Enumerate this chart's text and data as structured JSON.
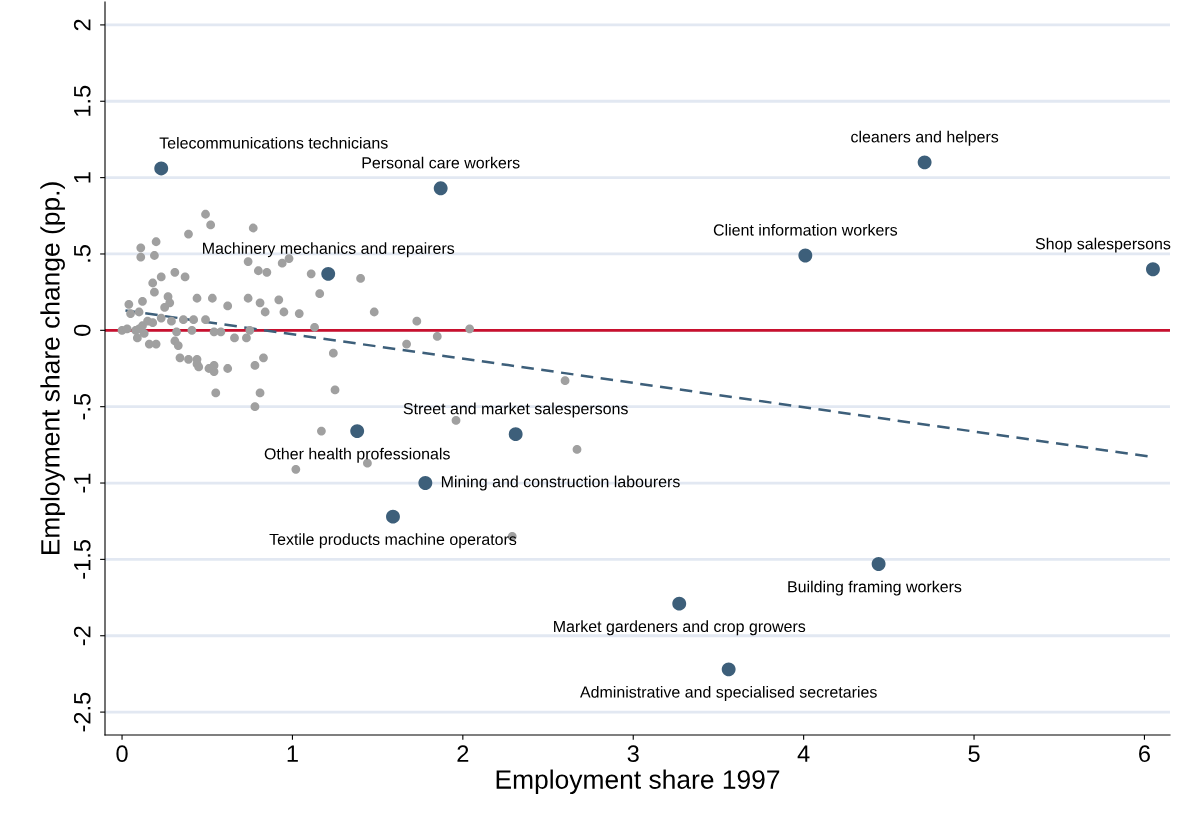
{
  "chart_data": {
    "type": "scatter",
    "xlabel": "Employment share 1997",
    "ylabel": "Employment share change (pp.)",
    "xlim": [
      -0.1,
      6.15
    ],
    "ylim": [
      -2.65,
      2.15
    ],
    "xticks": [
      0,
      1,
      2,
      3,
      4,
      5,
      6
    ],
    "yticks": [
      {
        "value": -2.5,
        "label": "-2.5"
      },
      {
        "value": -2,
        "label": "-2"
      },
      {
        "value": -1.5,
        "label": "-1.5"
      },
      {
        "value": -1,
        "label": "-1"
      },
      {
        "value": -0.5,
        "label": "-.5"
      },
      {
        "value": 0,
        "label": "0"
      },
      {
        "value": 0.5,
        "label": ".5"
      },
      {
        "value": 1,
        "label": "1"
      },
      {
        "value": 1.5,
        "label": "1.5"
      },
      {
        "value": 2,
        "label": "2"
      }
    ],
    "grid": "y",
    "legend": false,
    "series": [
      {
        "marker": "circle",
        "color": "#a0a0a0",
        "x": [
          0.49,
          0.52,
          0.77,
          0.39,
          0.11,
          0.2,
          0.11,
          0.19,
          0.23,
          0.31,
          0.37,
          0.18,
          0.19,
          0.05,
          0.27,
          0.44,
          0.53,
          0.62,
          0.74,
          0.81,
          0.92,
          0.84,
          0.95,
          1.04,
          0.8,
          0.85,
          0.74,
          0.94,
          0.98,
          1.11,
          1.16,
          1.4,
          1.48,
          1.13,
          1.24,
          1.25,
          1.73,
          1.67,
          1.85,
          2.04,
          1.96,
          2.6,
          2.67,
          1.17,
          1.02,
          1.44,
          2.29,
          0.78,
          0.81,
          0.83,
          0.78,
          0.73,
          0.75,
          0.0,
          0.03,
          0.08,
          0.1,
          0.12,
          0.13,
          0.09,
          0.16,
          0.2,
          0.15,
          0.18,
          0.23,
          0.29,
          0.32,
          0.31,
          0.33,
          0.34,
          0.39,
          0.44,
          0.44,
          0.45,
          0.51,
          0.54,
          0.54,
          0.55,
          0.62,
          0.66,
          0.58,
          0.49,
          0.42,
          0.36,
          0.25,
          0.28,
          0.04,
          0.12,
          0.1,
          0.41,
          0.54
        ],
        "values": [
          0.76,
          0.69,
          0.67,
          0.63,
          0.54,
          0.58,
          0.48,
          0.49,
          0.35,
          0.38,
          0.35,
          0.31,
          0.25,
          0.11,
          0.22,
          0.21,
          0.21,
          0.16,
          0.21,
          0.18,
          0.2,
          0.12,
          0.12,
          0.11,
          0.39,
          0.38,
          0.45,
          0.44,
          0.47,
          0.37,
          0.24,
          0.34,
          0.12,
          0.02,
          -0.15,
          -0.39,
          0.06,
          -0.09,
          -0.04,
          0.01,
          -0.59,
          -0.33,
          -0.78,
          -0.66,
          -0.91,
          -0.87,
          -1.35,
          -0.5,
          -0.41,
          -0.18,
          -0.23,
          -0.05,
          0.0,
          0.0,
          0.01,
          0.0,
          0.01,
          0.03,
          -0.02,
          -0.05,
          -0.09,
          -0.09,
          0.06,
          0.05,
          0.08,
          0.06,
          -0.01,
          -0.07,
          -0.1,
          -0.18,
          -0.19,
          -0.19,
          -0.22,
          -0.24,
          -0.25,
          -0.27,
          -0.23,
          -0.41,
          -0.25,
          -0.05,
          -0.01,
          0.07,
          0.07,
          0.07,
          0.15,
          0.18,
          0.17,
          0.19,
          0.12,
          0.0,
          -0.01
        ]
      },
      {
        "marker": "circle",
        "color": "#3d5f7a",
        "x": [
          0.23,
          1.87,
          4.71,
          4.01,
          6.05,
          1.21,
          2.31,
          1.38,
          1.78,
          1.59,
          4.44,
          3.27,
          3.56
        ],
        "values": [
          1.06,
          0.93,
          1.1,
          0.49,
          0.4,
          0.37,
          -0.68,
          -0.66,
          -1.0,
          -1.22,
          -1.53,
          -1.79,
          -2.22
        ]
      },
      {
        "type": "line",
        "color": "#3d5f7a",
        "line_style": "dashed",
        "x": [
          0.02,
          6.05
        ],
        "values": [
          0.13,
          -0.83
        ]
      }
    ],
    "ref_lines": [
      {
        "axis": "y",
        "value": 0,
        "color": "#c8102e"
      }
    ],
    "annotations": [
      {
        "text": "Telecommunications technicians",
        "x": 0.23,
        "y": 1.06
      },
      {
        "text": "Personal care workers",
        "x": 1.87,
        "y": 0.93
      },
      {
        "text": "cleaners and helpers",
        "x": 4.71,
        "y": 1.1
      },
      {
        "text": "Client information workers",
        "x": 4.01,
        "y": 0.49
      },
      {
        "text": "Shop salespersons",
        "x": 6.05,
        "y": 0.4
      },
      {
        "text": "Machinery mechanics and repairers",
        "x": 1.21,
        "y": 0.37
      },
      {
        "text": "Street and market salespersons",
        "x": 2.31,
        "y": -0.68
      },
      {
        "text": "Other health professionals",
        "x": 1.38,
        "y": -0.66
      },
      {
        "text": "Mining and construction labourers",
        "x": 1.78,
        "y": -1.0
      },
      {
        "text": "Textile products machine operators",
        "x": 1.59,
        "y": -1.22
      },
      {
        "text": "Building framing workers",
        "x": 4.44,
        "y": -1.53
      },
      {
        "text": "Market gardeners and crop growers",
        "x": 3.27,
        "y": -1.79
      },
      {
        "text": "Administrative and specialised secretaries",
        "x": 3.56,
        "y": -2.22
      }
    ]
  }
}
